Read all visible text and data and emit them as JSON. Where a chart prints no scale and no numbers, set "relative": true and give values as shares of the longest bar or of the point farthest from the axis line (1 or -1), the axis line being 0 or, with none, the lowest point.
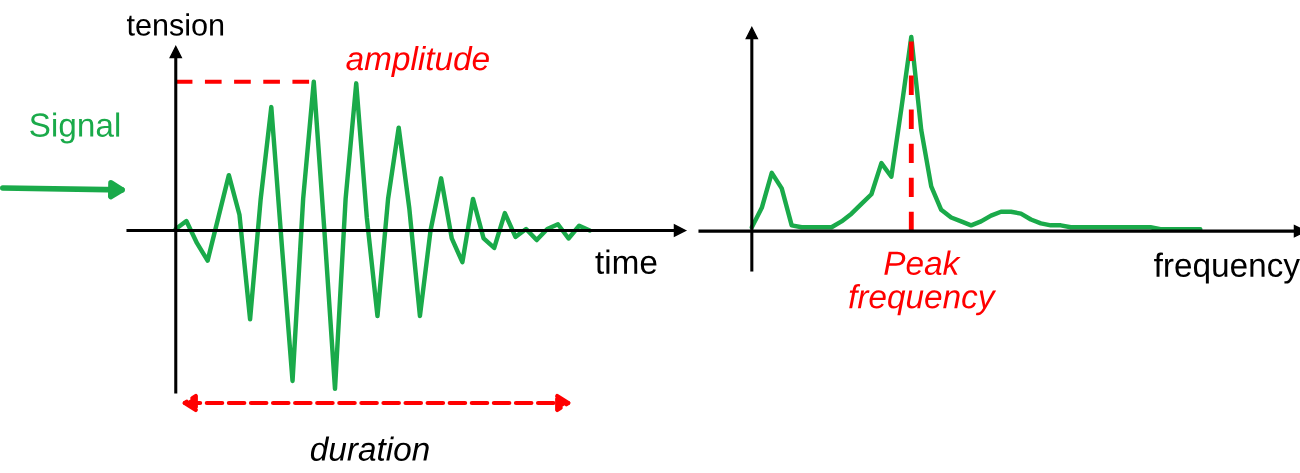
{
  "chart_data": [
    {
      "type": "line",
      "xlabel": "time",
      "ylabel": "tension",
      "relative": true,
      "legend": false,
      "marker": "none",
      "line_style": "solid",
      "categories": [
        null,
        null,
        null,
        null,
        null,
        null,
        null,
        null,
        null,
        null,
        null,
        null,
        null,
        null,
        null,
        null,
        null,
        null,
        null,
        null,
        null,
        null,
        null,
        null,
        null,
        null,
        null,
        null,
        null,
        null,
        null,
        null,
        null,
        null,
        null,
        null,
        null,
        null,
        null,
        null
      ],
      "series": [
        {
          "color": "#1aaa4a",
          "values": [
            0.01,
            0.06,
            -0.08,
            -0.19,
            0.08,
            0.35,
            0.1,
            -0.56,
            0.2,
            0.78,
            -0.1,
            -0.95,
            0.2,
            0.94,
            0.0,
            -1.0,
            0.2,
            0.93,
            0.08,
            -0.54,
            0.2,
            0.65,
            0.14,
            -0.54,
            0.0,
            0.33,
            -0.05,
            -0.2,
            0.2,
            -0.05,
            -0.11,
            0.11,
            -0.04,
            0.01,
            -0.06,
            0.01,
            0.04,
            -0.05,
            0.03,
            0.0
          ]
        }
      ],
      "ref_lines": [
        {
          "axis": "y",
          "value": 0.94,
          "label": "amplitude",
          "color": "#ff0000",
          "line_style": "dashed"
        }
      ],
      "annotations": [
        "Signal",
        "duration"
      ]
    },
    {
      "type": "line",
      "xlabel": "frequency",
      "relative": true,
      "legend": false,
      "marker": "none",
      "line_style": "solid",
      "categories": [
        null,
        null,
        null,
        null,
        null,
        null,
        null,
        null,
        null,
        null,
        null,
        null,
        null,
        null,
        null,
        null,
        null,
        null,
        null,
        null,
        null,
        null,
        null,
        null,
        null,
        null,
        null,
        null,
        null,
        null,
        null,
        null,
        null,
        null,
        null,
        null,
        null,
        null,
        null,
        null,
        null,
        null,
        null,
        null,
        null,
        null
      ],
      "series": [
        {
          "color": "#1aaa4a",
          "values": [
            0.02,
            0.12,
            0.3,
            0.22,
            0.03,
            0.02,
            0.02,
            0.02,
            0.02,
            0.05,
            0.09,
            0.14,
            0.19,
            0.35,
            0.28,
            0.63,
            1.0,
            0.52,
            0.23,
            0.11,
            0.07,
            0.05,
            0.03,
            0.05,
            0.08,
            0.1,
            0.1,
            0.09,
            0.06,
            0.04,
            0.03,
            0.03,
            0.02,
            0.02,
            0.02,
            0.02,
            0.02,
            0.02,
            0.02,
            0.02,
            0.02,
            0.01,
            0.01,
            0.01,
            0.01,
            0.01
          ]
        }
      ],
      "annotations": [
        "Peak frequency"
      ]
    }
  ]
}
